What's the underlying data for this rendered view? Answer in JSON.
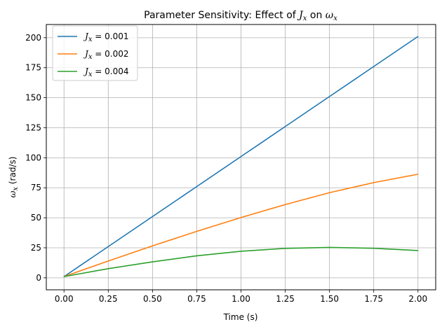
{
  "chart_data": {
    "type": "line",
    "title": {
      "prefix": "Parameter Sensitivity: Effect of ",
      "var1": "J",
      "var1_sub": "x",
      "middle": " on ",
      "var2": "ω",
      "var2_sub": "x"
    },
    "xlabel": "Time (s)",
    "ylabel": {
      "var": "ω",
      "sub": "x",
      "rest": " (rad/s)"
    },
    "xlim": [
      -0.1,
      2.1
    ],
    "ylim": [
      -10,
      211
    ],
    "xticks": [
      0.0,
      0.25,
      0.5,
      0.75,
      1.0,
      1.25,
      1.5,
      1.75,
      2.0
    ],
    "xtick_labels": [
      "0.00",
      "0.25",
      "0.50",
      "0.75",
      "1.00",
      "1.25",
      "1.50",
      "1.75",
      "2.00"
    ],
    "yticks": [
      0,
      25,
      50,
      75,
      100,
      125,
      150,
      175,
      200
    ],
    "ytick_labels": [
      "0",
      "25",
      "50",
      "75",
      "100",
      "125",
      "150",
      "175",
      "200"
    ],
    "grid": true,
    "legend_position": "top-left",
    "series": [
      {
        "name_var": "J",
        "name_sub": "x",
        "name_rest": " = 0.001",
        "color": "#1f77b4",
        "x": [
          0.0,
          0.25,
          0.5,
          0.75,
          1.0,
          1.25,
          1.5,
          1.75,
          2.0
        ],
        "values": [
          1.0,
          26.0,
          51.0,
          76.0,
          101.0,
          126.0,
          151.0,
          176.0,
          201.0
        ]
      },
      {
        "name_var": "J",
        "name_sub": "x",
        "name_rest": " = 0.002",
        "color": "#ff7f0e",
        "x": [
          0.0,
          0.25,
          0.5,
          0.75,
          1.0,
          1.25,
          1.5,
          1.75,
          2.0
        ],
        "values": [
          1.0,
          14.0,
          26.6,
          38.7,
          50.2,
          61.0,
          70.9,
          79.3,
          86.3
        ]
      },
      {
        "name_var": "J",
        "name_sub": "x",
        "name_rest": " = 0.004",
        "color": "#2ca02c",
        "x": [
          0.0,
          0.25,
          0.5,
          0.75,
          1.0,
          1.25,
          1.5,
          1.75,
          2.0
        ],
        "values": [
          1.0,
          7.6,
          13.3,
          18.3,
          22.1,
          24.5,
          25.3,
          24.6,
          22.7
        ]
      }
    ]
  }
}
